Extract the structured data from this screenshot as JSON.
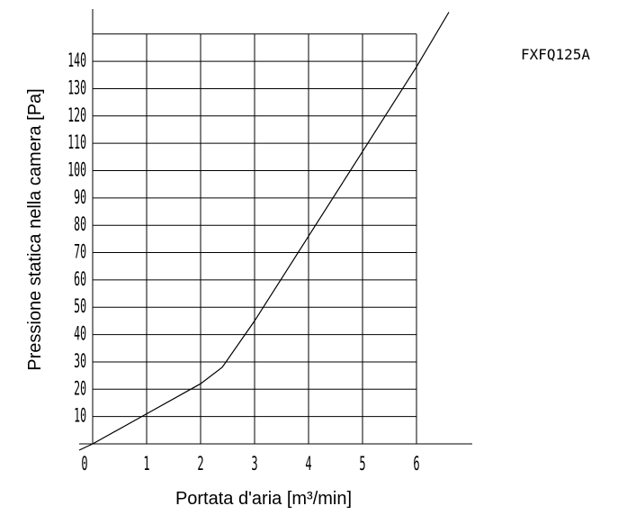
{
  "chart_data": {
    "type": "line",
    "title": "FXFQ125A",
    "xlabel": "Portata d'aria [m³/min]",
    "ylabel": "Pressione statica nella camera [Pa]",
    "xlim": [
      0,
      6
    ],
    "ylim": [
      0,
      150
    ],
    "x_ticks": [
      "0",
      "1",
      "2",
      "3",
      "4",
      "5",
      "6"
    ],
    "y_ticks": [
      "10",
      "20",
      "30",
      "40",
      "50",
      "60",
      "70",
      "80",
      "90",
      "100",
      "110",
      "120",
      "130",
      "140"
    ],
    "grid": true,
    "series": [
      {
        "x": [
          0,
          1,
          2,
          2.4,
          3,
          4,
          5,
          6,
          6.6
        ],
        "y": [
          0,
          11,
          22,
          28,
          45,
          76,
          107,
          138,
          158
        ]
      }
    ]
  }
}
